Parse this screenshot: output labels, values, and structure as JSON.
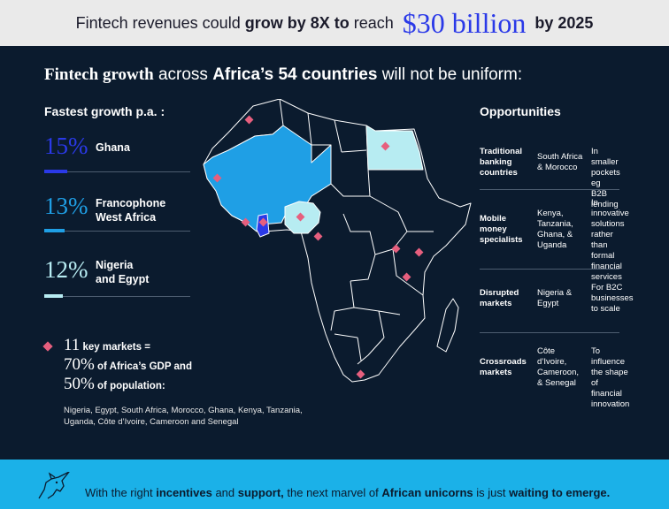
{
  "banner": {
    "pre": "Fintech revenues could",
    "bold": "grow by 8X to",
    "mid": "reach",
    "big": "$30 billion",
    "post": "by 2025"
  },
  "headline": {
    "serif_part": "Fintech growth",
    "mid": "across",
    "bold": "Africa’s 54 countries",
    "post": "will not be uniform:"
  },
  "fastest": {
    "title": "Fastest growth p.a. :",
    "items": [
      {
        "pct": "15%",
        "label1": "Ghana",
        "label2": "",
        "color": "#2a39e8",
        "value": 15
      },
      {
        "pct": "13%",
        "label1": "Francophone",
        "label2": "West Africa",
        "color": "#1f9fe5",
        "value": 13
      },
      {
        "pct": "12%",
        "label1": "Nigeria",
        "label2": "and Egypt",
        "color": "#b7ecf2",
        "value": 12
      }
    ]
  },
  "key_markets": {
    "count": "11",
    "count_label": "key markets =",
    "gdp_pct": "70%",
    "gdp_label": "of Africa’s GDP and",
    "pop_pct": "50%",
    "pop_label": "of population:",
    "countries_text": "Nigeria, Egypt, South Africa, Morocco, Ghana, Kenya, Tanzania, Uganda, Côte d’Ivoire, Cameroon and Senegal"
  },
  "opportunities": {
    "title": "Opportunities",
    "rows": [
      {
        "c1": [
          "Traditional",
          "banking",
          "countries"
        ],
        "c2": [
          "South Africa",
          "& Morocco"
        ],
        "c3": [
          "In smaller",
          "pockets eg",
          "B2B lending"
        ]
      },
      {
        "c1": [
          "Mobile",
          "money",
          "specialists"
        ],
        "c2": [
          "Kenya,",
          "Tanzania,",
          "Ghana, &",
          "Uganda"
        ],
        "c3": [
          "In innovative",
          "solutions",
          "rather than",
          "formal",
          "financial",
          "services"
        ]
      },
      {
        "c1": [
          "Disrupted",
          "markets"
        ],
        "c2": [
          "Nigeria &",
          "Egypt"
        ],
        "c3": [
          "For B2C",
          "businesses",
          "to scale"
        ]
      },
      {
        "c1": [
          "Crossroads",
          "markets"
        ],
        "c2": [
          "Côte",
          "d’Ivoire,",
          "Cameroon,",
          "& Senegal"
        ],
        "c3": [
          "To influence",
          "the shape",
          "of financial",
          "innovation"
        ]
      }
    ]
  },
  "map": {
    "colors": {
      "ghana": "#2a39e8",
      "francophone": "#1f9fe5",
      "nigeria_egypt": "#b7ecf2",
      "base": "#0b1b2e",
      "border": "#ffffff",
      "marker": "#e65f7e"
    },
    "markers": [
      "Morocco",
      "Egypt",
      "Senegal",
      "Côte d’Ivoire",
      "Ghana",
      "Nigeria",
      "Cameroon",
      "Uganda",
      "Kenya",
      "Tanzania",
      "South Africa"
    ]
  },
  "footer": {
    "icon": "unicorn-icon",
    "p1": "With the right",
    "b1": "incentives",
    "p2": "and",
    "b2": "support,",
    "p3": "the next marvel of",
    "b3": "African unicorns",
    "p4": "is just",
    "b4": "waiting to emerge."
  }
}
